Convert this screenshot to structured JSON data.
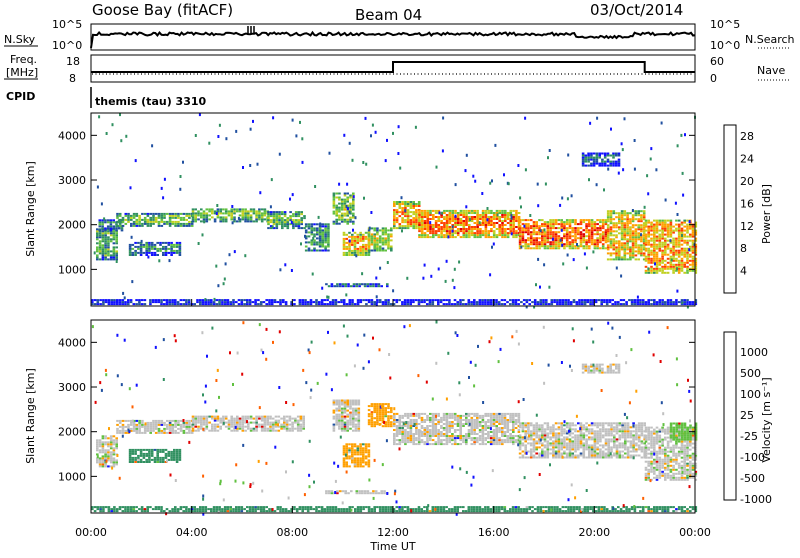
{
  "header": {
    "station": "Goose Bay (fitACF)",
    "beam": "Beam 04",
    "date": "03/Oct/2014"
  },
  "aux_panels": {
    "nsky": {
      "label": "N.Sky",
      "ticks": [
        "10^5",
        "10^0"
      ],
      "right_label": "N.Search",
      "right_ticks": [
        "10^5",
        "10^0"
      ]
    },
    "freq": {
      "label_line1": "Freq.",
      "label_line2": "[MHz]",
      "ticks": [
        "18",
        "8"
      ],
      "right_label": "Nave",
      "right_ticks": [
        "60",
        "0"
      ]
    },
    "cpid": {
      "label": "CPID",
      "value": "themis (tau) 3310"
    }
  },
  "colors": {
    "ionospheric_gray": "#c0c0c0",
    "frame": "#000000"
  },
  "chart_data": [
    {
      "type": "heatmap",
      "name": "power",
      "ylabel": "Slant Range [km]",
      "xlabel": "",
      "x_tick_labels": [
        "00:00",
        "04:00",
        "08:00",
        "12:00",
        "16:00",
        "20:00",
        "00:00"
      ],
      "x_range_hours": [
        0,
        24
      ],
      "ylim": [
        180,
        4500
      ],
      "y_ticks": [
        1000,
        2000,
        3000,
        4000
      ],
      "colorbar": {
        "label": "Power [dB]",
        "ticks": [
          "4",
          "8",
          "12",
          "16",
          "20",
          "24",
          "28"
        ],
        "tick_values": [
          4,
          8,
          12,
          16,
          20,
          24,
          28
        ],
        "range": [
          0,
          30
        ],
        "stops": [
          "#1010ff",
          "#2050a0",
          "#309060",
          "#60c040",
          "#c0d020",
          "#ffa000",
          "#ff4000",
          "#e00000"
        ]
      },
      "bands": [
        {
          "t0": 0.2,
          "t1": 1.0,
          "r0": 1200,
          "r1": 1900,
          "v": 11
        },
        {
          "t0": 0.3,
          "t1": 1.2,
          "r0": 1850,
          "r1": 2100,
          "v": 9
        },
        {
          "t0": 1.0,
          "t1": 4.0,
          "r0": 1950,
          "r1": 2250,
          "v": 13
        },
        {
          "t0": 4.0,
          "t1": 7.0,
          "r0": 2050,
          "r1": 2350,
          "v": 14
        },
        {
          "t0": 7.0,
          "t1": 8.5,
          "r0": 1900,
          "r1": 2300,
          "v": 12
        },
        {
          "t0": 8.5,
          "t1": 9.4,
          "r0": 1400,
          "r1": 2000,
          "v": 10
        },
        {
          "t0": 9.6,
          "t1": 10.4,
          "r0": 2000,
          "r1": 2700,
          "v": 14
        },
        {
          "t0": 10.0,
          "t1": 11.0,
          "r0": 1300,
          "r1": 1800,
          "v": 19
        },
        {
          "t0": 11.0,
          "t1": 11.9,
          "r0": 1400,
          "r1": 1900,
          "v": 16
        },
        {
          "t0": 12.0,
          "t1": 13.0,
          "r0": 1900,
          "r1": 2500,
          "v": 20
        },
        {
          "t0": 13.0,
          "t1": 17.0,
          "r0": 1700,
          "r1": 2300,
          "v": 22
        },
        {
          "t0": 17.0,
          "t1": 20.5,
          "r0": 1450,
          "r1": 2100,
          "v": 23
        },
        {
          "t0": 20.5,
          "t1": 22.0,
          "r0": 1200,
          "r1": 2300,
          "v": 19
        },
        {
          "t0": 22.0,
          "t1": 24.0,
          "r0": 900,
          "r1": 2100,
          "v": 20
        },
        {
          "t0": 9.3,
          "t1": 11.8,
          "r0": 600,
          "r1": 680,
          "v": 10
        },
        {
          "t0": 19.5,
          "t1": 21.0,
          "r0": 3300,
          "r1": 3600,
          "v": 6
        },
        {
          "t0": 1.5,
          "t1": 3.5,
          "r0": 1300,
          "r1": 1600,
          "v": 9
        },
        {
          "t0": 0.0,
          "t1": 24.0,
          "r0": 200,
          "r1": 320,
          "v": 7
        }
      ]
    },
    {
      "type": "heatmap",
      "name": "velocity",
      "ylabel": "Slant Range [km]",
      "xlabel": "Time UT",
      "x_tick_labels": [
        "00:00",
        "04:00",
        "08:00",
        "12:00",
        "16:00",
        "20:00",
        "00:00"
      ],
      "x_range_hours": [
        0,
        24
      ],
      "ylim": [
        180,
        4500
      ],
      "y_ticks": [
        1000,
        2000,
        3000,
        4000
      ],
      "colorbar": {
        "label": "Velocity [m s⁻¹]",
        "ticks": [
          "1000",
          "500",
          "100",
          "25",
          "-25",
          "-100",
          "-500",
          "-1000"
        ],
        "range": [
          -1000,
          1000
        ],
        "stops": [
          "#1010ff",
          "#2050a0",
          "#309060",
          "#60c040",
          "#c0c0c0",
          "#ffa000",
          "#ff6000",
          "#e00000"
        ]
      },
      "bands": [
        {
          "t0": 0.2,
          "t1": 1.0,
          "r0": 1200,
          "r1": 1900,
          "v": 0
        },
        {
          "t0": 1.0,
          "t1": 4.0,
          "r0": 1950,
          "r1": 2250,
          "v": 0
        },
        {
          "t0": 4.0,
          "t1": 8.5,
          "r0": 2000,
          "r1": 2350,
          "v": 0
        },
        {
          "t0": 1.5,
          "t1": 3.5,
          "r0": 1300,
          "r1": 1600,
          "v": 300
        },
        {
          "t0": 9.6,
          "t1": 10.6,
          "r0": 2000,
          "r1": 2700,
          "v": 0
        },
        {
          "t0": 10.0,
          "t1": 11.0,
          "r0": 1200,
          "r1": 1700,
          "v": -150
        },
        {
          "t0": 11.0,
          "t1": 11.9,
          "r0": 2100,
          "r1": 2600,
          "v": -200
        },
        {
          "t0": 12.0,
          "t1": 17.0,
          "r0": 1700,
          "r1": 2400,
          "v": 0
        },
        {
          "t0": 17.0,
          "t1": 22.0,
          "r0": 1400,
          "r1": 2200,
          "v": 0
        },
        {
          "t0": 22.0,
          "t1": 24.0,
          "r0": 900,
          "r1": 2100,
          "v": 0
        },
        {
          "t0": 23.0,
          "t1": 24.0,
          "r0": 1800,
          "r1": 2200,
          "v": 60
        },
        {
          "t0": 9.3,
          "t1": 11.8,
          "r0": 600,
          "r1": 680,
          "v": 0
        },
        {
          "t0": 19.5,
          "t1": 21.0,
          "r0": 3300,
          "r1": 3500,
          "v": 0
        },
        {
          "t0": 0.0,
          "t1": 24.0,
          "r0": 200,
          "r1": 320,
          "v": 200
        }
      ]
    }
  ]
}
